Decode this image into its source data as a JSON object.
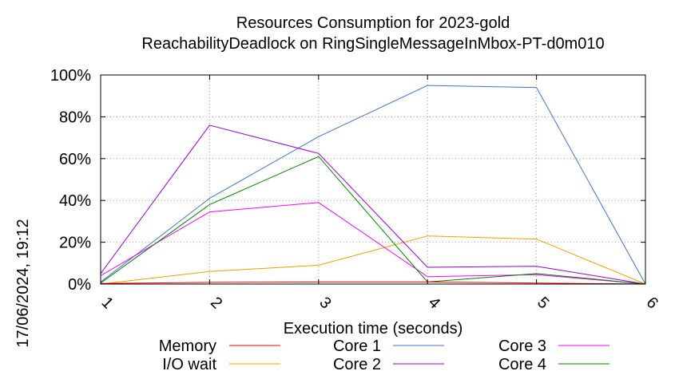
{
  "chart_data": {
    "type": "line",
    "title": "Resources Consumption for 2023-gold",
    "subtitle": "ReachabilityDeadlock on RingSingleMessageInMbox-PT-d0m010",
    "xlabel": "Execution time (seconds)",
    "ylabel": "",
    "x": [
      1,
      2,
      3,
      4,
      5,
      6
    ],
    "xlim": [
      1,
      6
    ],
    "ylim": [
      0,
      100
    ],
    "yticks": [
      "0%",
      "20%",
      "40%",
      "60%",
      "80%",
      "100%"
    ],
    "xticks": [
      "1",
      "2",
      "3",
      "4",
      "5",
      "6"
    ],
    "grid": true,
    "legend_position": "bottom",
    "series": [
      {
        "name": "Memory",
        "color": "#ff0000",
        "values": [
          0.3,
          0.8,
          1.0,
          1.0,
          0.5,
          0
        ]
      },
      {
        "name": "I/O wait",
        "color": "#f0a000",
        "values": [
          0,
          6,
          9,
          23,
          21.5,
          0
        ]
      },
      {
        "name": "Core 1",
        "color": "#4472c4",
        "values": [
          1,
          41,
          70.5,
          95,
          94,
          0
        ]
      },
      {
        "name": "Core 2",
        "color": "#9400d3",
        "values": [
          5,
          76,
          62.5,
          8,
          8.5,
          0
        ]
      },
      {
        "name": "Core 3",
        "color": "#ff00ff",
        "values": [
          4,
          34.5,
          39,
          3.5,
          4.5,
          0
        ]
      },
      {
        "name": "Core 4",
        "color": "#008000",
        "values": [
          0.5,
          38,
          61,
          1,
          5,
          0
        ]
      }
    ]
  },
  "timestamp": "17/06/2024, 19:12"
}
